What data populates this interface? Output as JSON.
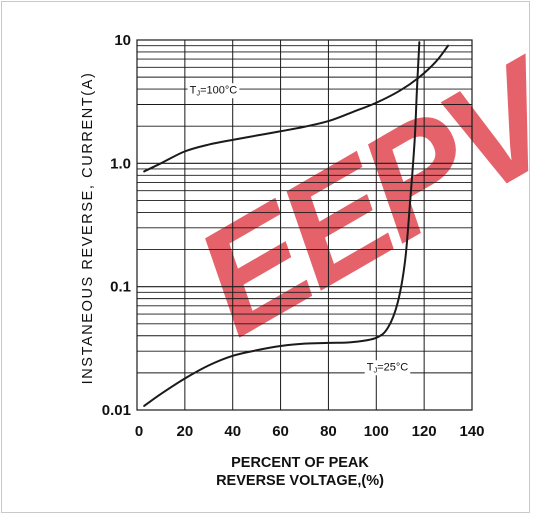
{
  "chart_data": {
    "type": "line",
    "xlabel_line1": "PERCENT OF PEAK",
    "xlabel_line2": "REVERSE VOLTAGE,(%)",
    "ylabel": "INSTANEOUS REVERSE, CURRENT(A)",
    "y_scale": "log",
    "xlim": [
      0,
      140
    ],
    "ylim": [
      0.01,
      10
    ],
    "x_ticks": [
      0,
      20,
      40,
      60,
      80,
      100,
      120,
      140
    ],
    "y_ticks": [
      0.01,
      0.1,
      1.0,
      10
    ],
    "y_tick_labels": [
      "0.01",
      "0.1",
      "1.0",
      "10"
    ],
    "grid": true,
    "watermark": {
      "text": "EEPV",
      "color": "#e0404a"
    },
    "series": [
      {
        "name": "TJ=100°C",
        "label_t": "T",
        "label_sub": "J",
        "label_rest": "=100°C",
        "color": "#1a1a1a",
        "x": [
          3,
          10,
          20,
          30,
          40,
          50,
          60,
          70,
          80,
          90,
          100,
          110,
          118,
          125,
          130
        ],
        "y": [
          0.86,
          1.0,
          1.25,
          1.42,
          1.55,
          1.68,
          1.82,
          1.98,
          2.2,
          2.6,
          3.1,
          3.9,
          5.0,
          6.7,
          9.0
        ]
      },
      {
        "name": "TJ=25°C",
        "label_t": "T",
        "label_sub": "J",
        "label_rest": "=25°C",
        "color": "#1a1a1a",
        "x": [
          3,
          10,
          20,
          30,
          40,
          50,
          60,
          70,
          80,
          90,
          100,
          105,
          109,
          112,
          114,
          116,
          117,
          118
        ],
        "y": [
          0.0108,
          0.0135,
          0.018,
          0.023,
          0.0275,
          0.0305,
          0.033,
          0.0345,
          0.035,
          0.0355,
          0.0385,
          0.047,
          0.075,
          0.16,
          0.45,
          1.5,
          4.0,
          9.6
        ]
      }
    ]
  }
}
